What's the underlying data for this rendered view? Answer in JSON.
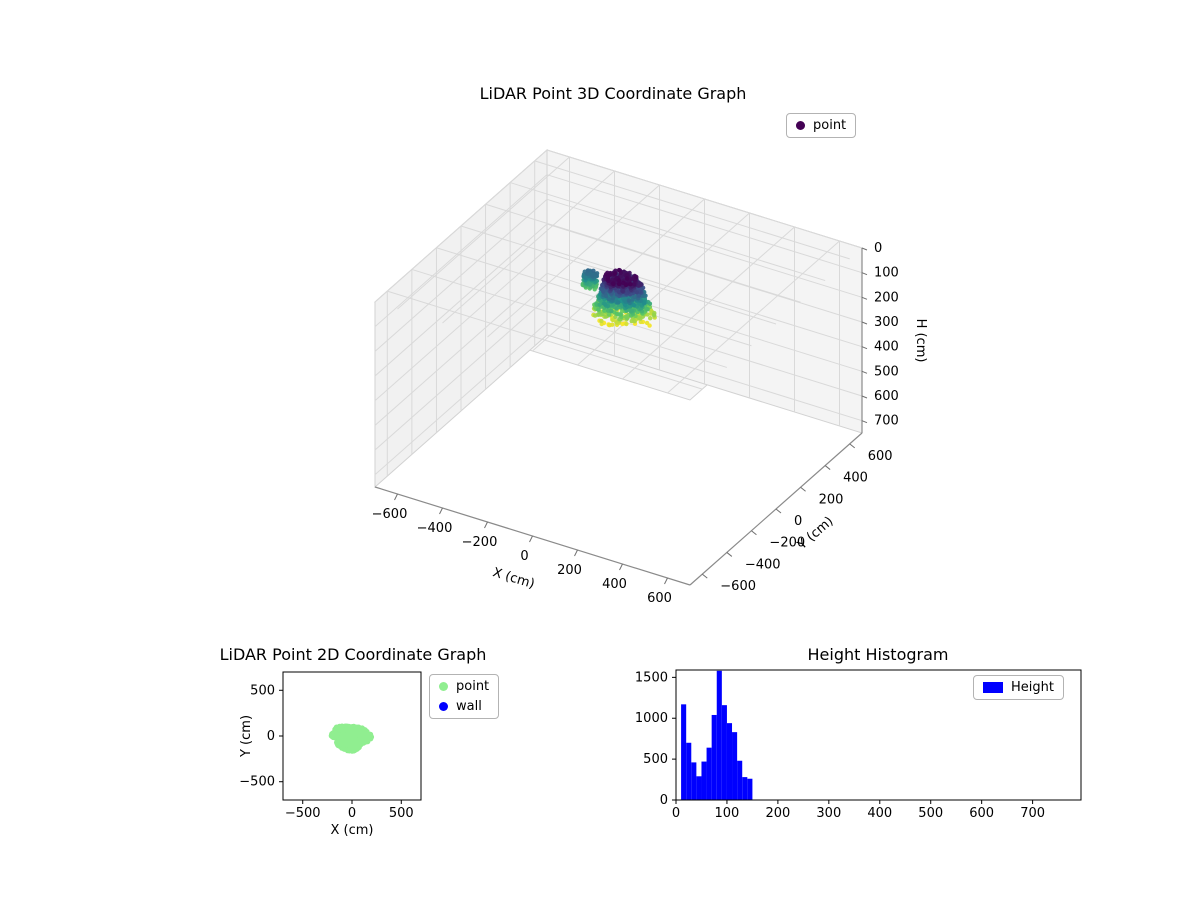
{
  "figure": {
    "background": "#ffffff"
  },
  "chart_data": [
    {
      "id": "scatter3d",
      "type": "scatter",
      "projection": "3d",
      "title": "LiDAR Point 3D Coordinate Graph",
      "xlabel": "X (cm)",
      "ylabel": "Y (cm)",
      "zlabel": "H (cm)",
      "xlim": [
        -700,
        700
      ],
      "ylim": [
        -700,
        700
      ],
      "zlim": [
        0,
        750
      ],
      "z_axis_inverted": true,
      "xticks": [
        -600,
        -400,
        -200,
        0,
        200,
        400,
        600
      ],
      "yticks": [
        -600,
        -400,
        -200,
        0,
        200,
        400,
        600
      ],
      "zticks": [
        0,
        100,
        200,
        300,
        400,
        500,
        600,
        700
      ],
      "legend": [
        {
          "label": "point",
          "color": "#440154"
        }
      ],
      "colormap": "viridis",
      "color_by": "height",
      "cluster": {
        "count": 1150,
        "center_x": 10,
        "center_y": 10,
        "h_min": 10,
        "h_max": 160,
        "radius_top": 70,
        "radius_bottom": 130
      },
      "secondary_cluster": {
        "count": 130,
        "center_x": -160,
        "center_y": 60,
        "h_min": 60,
        "h_max": 120,
        "radius": 30
      }
    },
    {
      "id": "scatter2d",
      "type": "scatter",
      "title": "LiDAR Point 2D Coordinate Graph",
      "xlabel": "X (cm)",
      "ylabel": "Y (cm)",
      "xlim": [
        -700,
        700
      ],
      "ylim": [
        -700,
        700
      ],
      "xticks": [
        -500,
        0,
        500
      ],
      "yticks": [
        -500,
        0,
        500
      ],
      "legend": [
        {
          "label": "point",
          "color": "#90ee90"
        },
        {
          "label": "wall",
          "color": "#0000ff"
        }
      ],
      "cluster": {
        "count": 420,
        "center_x": -5,
        "center_y": -15,
        "radius_x": 175,
        "radius_y": 135
      },
      "secondary_cluster": {
        "count": 70,
        "center_x": -180,
        "center_y": 10,
        "radius": 30
      }
    },
    {
      "id": "histogram",
      "type": "bar",
      "title": "Height Histogram",
      "xlabel": "",
      "ylabel": "",
      "xlim": [
        0,
        795
      ],
      "ylim": [
        0,
        1590
      ],
      "xticks": [
        0,
        100,
        200,
        300,
        400,
        500,
        600,
        700
      ],
      "yticks": [
        0,
        500,
        1000,
        1500
      ],
      "legend": [
        {
          "label": "Height",
          "color": "#0000ff"
        }
      ],
      "bar_color": "#0000ff",
      "bin_start": 10,
      "bin_width": 10,
      "counts": [
        1170,
        700,
        460,
        290,
        470,
        640,
        1040,
        1580,
        1160,
        940,
        830,
        480,
        280,
        260
      ]
    }
  ]
}
